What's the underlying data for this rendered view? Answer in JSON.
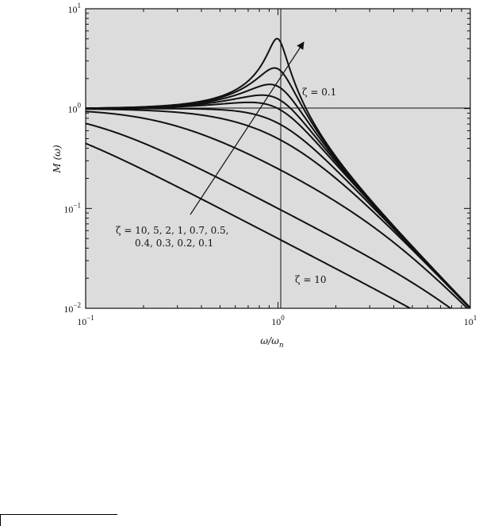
{
  "chart_data": {
    "type": "line",
    "xlabel": "ω/ω",
    "xlabel_sub": "n",
    "ylabel": "M (ω)",
    "x_scale": "log",
    "y_scale": "log",
    "xlim": [
      0.1,
      10
    ],
    "ylim": [
      0.01,
      10
    ],
    "x_ticks": [
      {
        "base": "10",
        "exp": "−1",
        "value": 0.1
      },
      {
        "base": "10",
        "exp": "0",
        "value": 1
      },
      {
        "base": "10",
        "exp": "1",
        "value": 10
      }
    ],
    "y_ticks": [
      {
        "base": "10",
        "exp": "−2",
        "value": 0.01
      },
      {
        "base": "10",
        "exp": "−1",
        "value": 0.1
      },
      {
        "base": "10",
        "exp": "0",
        "value": 1
      },
      {
        "base": "10",
        "exp": "1",
        "value": 10
      }
    ],
    "grid": false,
    "reference_lines": {
      "x": 1,
      "y": 1
    },
    "background": "#dcdcdc",
    "series_color": "#111111",
    "zeta_values": [
      10,
      5,
      2,
      1,
      0.7,
      0.5,
      0.4,
      0.3,
      0.2,
      0.1
    ],
    "annotations": {
      "zeta_low": "ζ = 0.1",
      "zeta_list_line1": "ζ = 10, 5, 2, 1, 0.7, 0.5,",
      "zeta_list_line2": "0.4, 0.3, 0.2, 0.1",
      "zeta_high": "ζ = 10"
    }
  }
}
